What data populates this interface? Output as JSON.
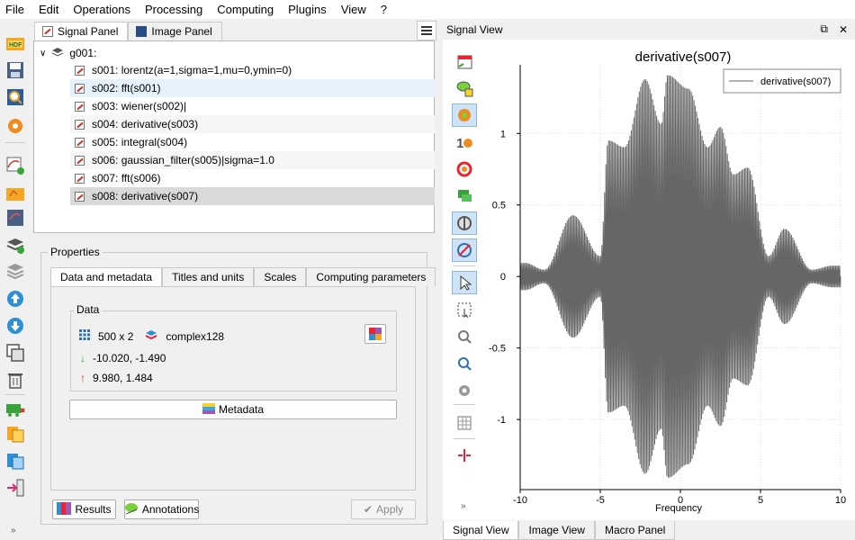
{
  "menu": [
    "File",
    "Edit",
    "Operations",
    "Processing",
    "Computing",
    "Plugins",
    "View",
    "?"
  ],
  "panel_tabs": [
    "Signal Panel",
    "Image Panel"
  ],
  "tree": {
    "group": "g001:",
    "items": [
      "s001: lorentz(a=1,sigma=1,mu=0,ymin=0)",
      "s002: fft(s001)",
      "s003: wiener(s002)|",
      "s004: derivative(s003)",
      "s005: integral(s004)",
      "s006: gaussian_filter(s005)|sigma=1.0",
      "s007: fft(s006)",
      "s008: derivative(s007)"
    ]
  },
  "properties": {
    "title": "Properties",
    "tabs": [
      "Data and metadata",
      "Titles and units",
      "Scales",
      "Computing parameters"
    ],
    "data_title": "Data",
    "shape": "500 x 2",
    "dtype": "complex128",
    "min_xy": "-10.020, -1.490",
    "max_xy": "9.980, 1.484",
    "metadata_button": "Metadata",
    "results_button": "Results",
    "annotations_button": "Annotations",
    "apply_button": "Apply"
  },
  "signal_view": {
    "dock_title": "Signal View",
    "bottom_tabs": [
      "Signal View",
      "Image View",
      "Macro Panel"
    ]
  },
  "colors": {
    "curve": "#666666",
    "selection": "#d9d9d9",
    "hover": "#e5f1fb",
    "toggle_on": "#cfe3f7"
  },
  "chart_data": {
    "type": "line",
    "title": "derivative(s007)",
    "xlabel": "Frequency",
    "ylabel": "",
    "xlim": [
      -10,
      10
    ],
    "ylim": [
      -1.49,
      1.48
    ],
    "xticks": [
      -10,
      -5,
      0,
      5,
      10
    ],
    "yticks": [
      -1,
      -0.5,
      0,
      0.5,
      1
    ],
    "grid": true,
    "legend": "top-right",
    "series": [
      {
        "name": "derivative(s007)",
        "form": "oscillating beat-modulated signal, envelope symmetric about x=0",
        "envelope_peaks": [
          {
            "x": -9.7,
            "y": 0.1
          },
          {
            "x": -8.5,
            "y": 0.05
          },
          {
            "x": -6.7,
            "y": 0.45
          },
          {
            "x": -5.0,
            "y": 0.15
          },
          {
            "x": -4.5,
            "y": 1.0
          },
          {
            "x": -3.5,
            "y": 0.95
          },
          {
            "x": -2.2,
            "y": 1.45
          },
          {
            "x": -1.2,
            "y": 1.12
          },
          {
            "x": -0.8,
            "y": 1.48
          },
          {
            "x": 0.5,
            "y": 1.38
          },
          {
            "x": 1.7,
            "y": 0.95
          },
          {
            "x": 2.5,
            "y": 1.1
          },
          {
            "x": 3.3,
            "y": 0.75
          },
          {
            "x": 4.2,
            "y": 0.8
          },
          {
            "x": 5.5,
            "y": 0.15
          },
          {
            "x": 6.5,
            "y": 0.35
          },
          {
            "x": 8.2,
            "y": 0.05
          },
          {
            "x": 9.5,
            "y": 0.08
          }
        ]
      }
    ]
  }
}
